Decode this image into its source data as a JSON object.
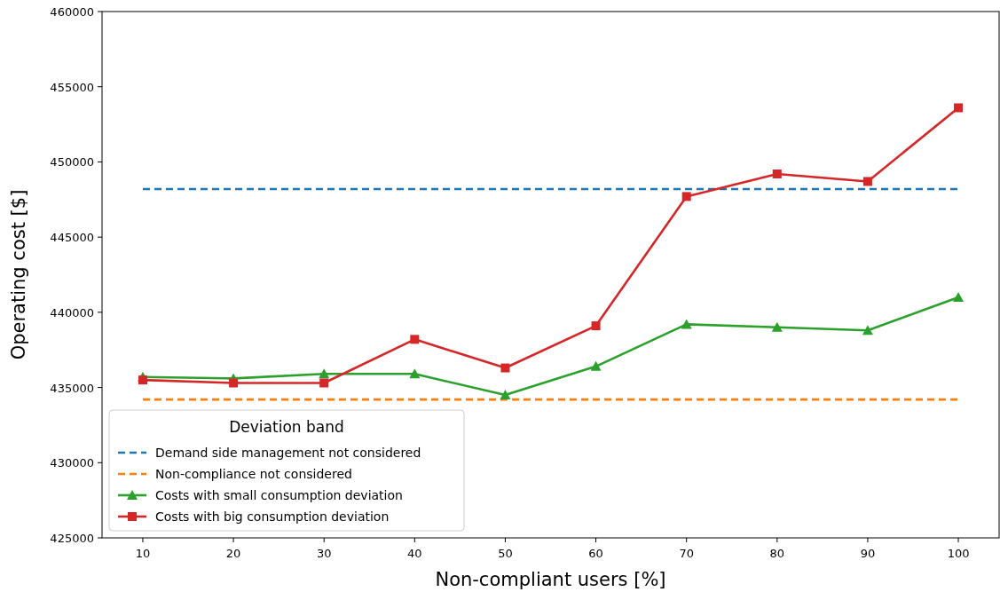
{
  "chart_data": {
    "type": "line",
    "xlabel": "Non-compliant users [%]",
    "ylabel": "Operating cost [$]",
    "legend_title": "Deviation band",
    "legend": "bottom left",
    "grid": false,
    "x": [
      10,
      20,
      30,
      40,
      50,
      60,
      70,
      80,
      90,
      100
    ],
    "xlim": [
      5.5,
      104.5
    ],
    "xticks": [
      10,
      20,
      30,
      40,
      50,
      60,
      70,
      80,
      90,
      100
    ],
    "ylim": [
      425000,
      460000
    ],
    "yticks": [
      425000,
      430000,
      435000,
      440000,
      445000,
      450000,
      455000,
      460000
    ],
    "series": [
      {
        "name": "Demand side management not considered",
        "color": "#1f77b4",
        "line_style": "dashed",
        "marker": "none",
        "values": [
          448200,
          448200,
          448200,
          448200,
          448200,
          448200,
          448200,
          448200,
          448200,
          448200
        ]
      },
      {
        "name": "Non-compliance not considered",
        "color": "#ff7f0e",
        "line_style": "dashed",
        "marker": "none",
        "values": [
          434200,
          434200,
          434200,
          434200,
          434200,
          434200,
          434200,
          434200,
          434200,
          434200
        ]
      },
      {
        "name": "Costs with small consumption deviation",
        "color": "#2ca02c",
        "line_style": "solid",
        "marker": "triangle",
        "values": [
          435700,
          435600,
          435900,
          435900,
          434500,
          436400,
          439200,
          439000,
          438800,
          441000
        ]
      },
      {
        "name": "Costs with big consumption deviation",
        "color": "#d62728",
        "line_style": "solid",
        "marker": "square",
        "values": [
          435500,
          435300,
          435300,
          438200,
          436300,
          439100,
          447700,
          449200,
          448700,
          453600
        ]
      }
    ]
  }
}
